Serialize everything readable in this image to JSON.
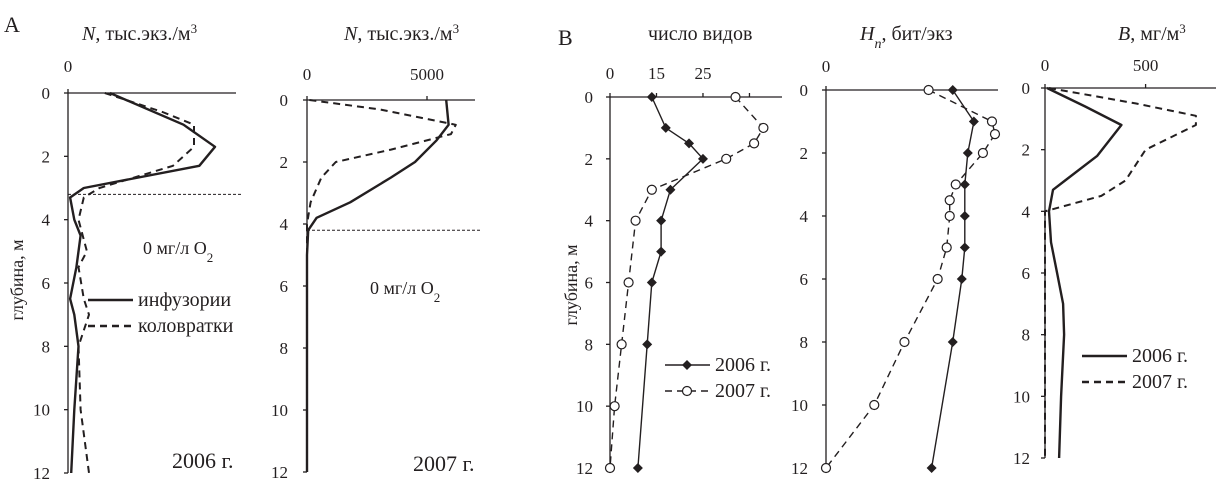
{
  "panel_labels": {
    "A": "A",
    "B": "B"
  },
  "y_axis_label": "глубина, м",
  "chart_data": [
    {
      "type": "line",
      "title_sym": "N",
      "title_rest": ", тыс.экз./м",
      "title_sup": "3",
      "x_ticks": [
        0
      ],
      "xlim": [
        0,
        1600
      ],
      "ylim": [
        0,
        12
      ],
      "y_ticks": [
        0,
        2,
        4,
        6,
        8,
        10,
        12
      ],
      "series": [
        {
          "name": "инфузории",
          "style": "solid",
          "markers": false,
          "points": [
            [
              400,
              0
            ],
            [
              1100,
              1
            ],
            [
              1400,
              1.7
            ],
            [
              1250,
              2.3
            ],
            [
              150,
              3
            ],
            [
              20,
              3.3
            ],
            [
              60,
              4
            ],
            [
              120,
              4.5
            ],
            [
              80,
              5.5
            ],
            [
              20,
              6.5
            ],
            [
              60,
              7
            ],
            [
              100,
              8
            ],
            [
              60,
              10
            ],
            [
              30,
              12
            ]
          ]
        },
        {
          "name": "коловратки",
          "style": "dashed",
          "markers": false,
          "points": [
            [
              350,
              0
            ],
            [
              900,
              0.6
            ],
            [
              1200,
              1
            ],
            [
              1200,
              1.7
            ],
            [
              1000,
              2.3
            ],
            [
              300,
              3
            ],
            [
              150,
              3.3
            ],
            [
              100,
              4
            ],
            [
              180,
              5
            ],
            [
              100,
              5.5
            ],
            [
              150,
              6.5
            ],
            [
              200,
              7
            ],
            [
              100,
              8
            ],
            [
              120,
              10
            ],
            [
              200,
              12
            ]
          ]
        }
      ],
      "note_main": "0 мг/л O",
      "note_sub": "2",
      "anoxia_depth": 3.2,
      "year": "2006 г.",
      "legend": [
        "инфузории",
        "коловратки"
      ]
    },
    {
      "type": "line",
      "title_sym": "N",
      "title_rest": ", тыс.экз./м",
      "title_sup": "3",
      "x_ticks": [
        0,
        5000
      ],
      "xlim": [
        0,
        7000
      ],
      "ylim": [
        0,
        12
      ],
      "y_ticks": [
        0,
        2,
        4,
        6,
        8,
        10,
        12
      ],
      "series": [
        {
          "name": "инфузории",
          "style": "solid",
          "markers": false,
          "points": [
            [
              5800,
              0
            ],
            [
              5900,
              0.8
            ],
            [
              5400,
              1.3
            ],
            [
              4500,
              2
            ],
            [
              3500,
              2.5
            ],
            [
              1800,
              3.3
            ],
            [
              400,
              3.8
            ],
            [
              50,
              4.2
            ],
            [
              0,
              5
            ],
            [
              0,
              12
            ]
          ]
        },
        {
          "name": "коловратки",
          "style": "dashed",
          "markers": false,
          "points": [
            [
              100,
              0
            ],
            [
              3000,
              0.3
            ],
            [
              6200,
              0.8
            ],
            [
              6000,
              1.1
            ],
            [
              3500,
              1.6
            ],
            [
              1200,
              2
            ],
            [
              600,
              2.5
            ],
            [
              150,
              3.3
            ],
            [
              0,
              4
            ],
            [
              0,
              12
            ]
          ]
        }
      ],
      "note_main": "0 мг/л O",
      "note_sub": "2",
      "anoxia_depth": 4.2,
      "year": "2007 г."
    },
    {
      "type": "line",
      "title_sym": "",
      "title_rest": "число видов",
      "title_sup": "",
      "x_ticks": [
        0,
        15,
        25
      ],
      "x_tick_values": [
        0,
        10,
        20,
        30
      ],
      "xlim": [
        0,
        37
      ],
      "ylim": [
        0,
        12
      ],
      "y_ticks": [
        0,
        2,
        4,
        6,
        8,
        10,
        12
      ],
      "series": [
        {
          "name": "2006 г.",
          "style": "solid",
          "markers": true,
          "marker": "diamond",
          "points": [
            [
              9,
              0
            ],
            [
              12,
              1
            ],
            [
              17,
              1.5
            ],
            [
              20,
              2
            ],
            [
              13,
              3
            ],
            [
              11,
              4
            ],
            [
              11,
              5
            ],
            [
              9,
              6
            ],
            [
              8,
              8
            ],
            [
              6,
              12
            ]
          ]
        },
        {
          "name": "2007 г.",
          "style": "dashed",
          "markers": true,
          "marker": "circle",
          "points": [
            [
              27,
              0
            ],
            [
              33,
              1
            ],
            [
              31,
              1.5
            ],
            [
              25,
              2
            ],
            [
              9,
              3
            ],
            [
              5.5,
              4
            ],
            [
              4,
              6
            ],
            [
              2.5,
              8
            ],
            [
              1,
              10
            ],
            [
              0,
              12
            ]
          ]
        }
      ],
      "legend": [
        "2006 г.",
        "2007 г."
      ]
    },
    {
      "type": "line",
      "title_sym": "H",
      "title_sub": "n",
      "title_rest": ", бит/экз",
      "title_sup": "",
      "x_ticks": [
        0
      ],
      "xlim": [
        0,
        5.7
      ],
      "ylim": [
        0,
        12
      ],
      "y_ticks": [
        0,
        2,
        4,
        6,
        8,
        10,
        12
      ],
      "series": [
        {
          "name": "2006 г.",
          "style": "solid",
          "markers": true,
          "marker": "diamond",
          "points": [
            [
              4.2,
              0
            ],
            [
              4.9,
              1
            ],
            [
              4.7,
              2
            ],
            [
              4.6,
              3
            ],
            [
              4.6,
              4
            ],
            [
              4.6,
              5
            ],
            [
              4.5,
              6
            ],
            [
              4.2,
              8
            ],
            [
              3.5,
              12
            ]
          ]
        },
        {
          "name": "2007 г.",
          "style": "dashed",
          "markers": true,
          "marker": "circle",
          "points": [
            [
              3.4,
              0
            ],
            [
              5.5,
              1
            ],
            [
              5.6,
              1.4
            ],
            [
              5.2,
              2
            ],
            [
              4.3,
              3
            ],
            [
              4.1,
              3.5
            ],
            [
              4.1,
              4
            ],
            [
              4.0,
              5
            ],
            [
              3.7,
              6
            ],
            [
              2.6,
              8
            ],
            [
              1.6,
              10
            ],
            [
              0,
              12
            ]
          ]
        }
      ]
    },
    {
      "type": "line",
      "title_sym": "B",
      "title_rest": ", мг/м",
      "title_sup": "3",
      "x_ticks": [
        0,
        500
      ],
      "xlim": [
        0,
        850
      ],
      "ylim": [
        0,
        12
      ],
      "y_ticks": [
        0,
        2,
        4,
        6,
        8,
        10,
        12
      ],
      "series": [
        {
          "name": "2006 г.",
          "style": "solid",
          "markers": false,
          "points": [
            [
              10,
              0
            ],
            [
              200,
              0.6
            ],
            [
              380,
              1.2
            ],
            [
              260,
              2.2
            ],
            [
              100,
              3
            ],
            [
              40,
              3.3
            ],
            [
              20,
              4
            ],
            [
              30,
              5
            ],
            [
              60,
              6
            ],
            [
              90,
              7
            ],
            [
              95,
              8
            ],
            [
              80,
              10
            ],
            [
              70,
              12
            ]
          ]
        },
        {
          "name": "2007 г.",
          "style": "dashed",
          "markers": false,
          "points": [
            [
              20,
              0
            ],
            [
              450,
              0.5
            ],
            [
              750,
              0.9
            ],
            [
              750,
              1.2
            ],
            [
              500,
              2
            ],
            [
              400,
              3
            ],
            [
              280,
              3.5
            ],
            [
              0,
              4
            ],
            [
              0,
              12
            ]
          ]
        }
      ],
      "legend": [
        "2006 г.",
        "2007 г."
      ]
    }
  ]
}
